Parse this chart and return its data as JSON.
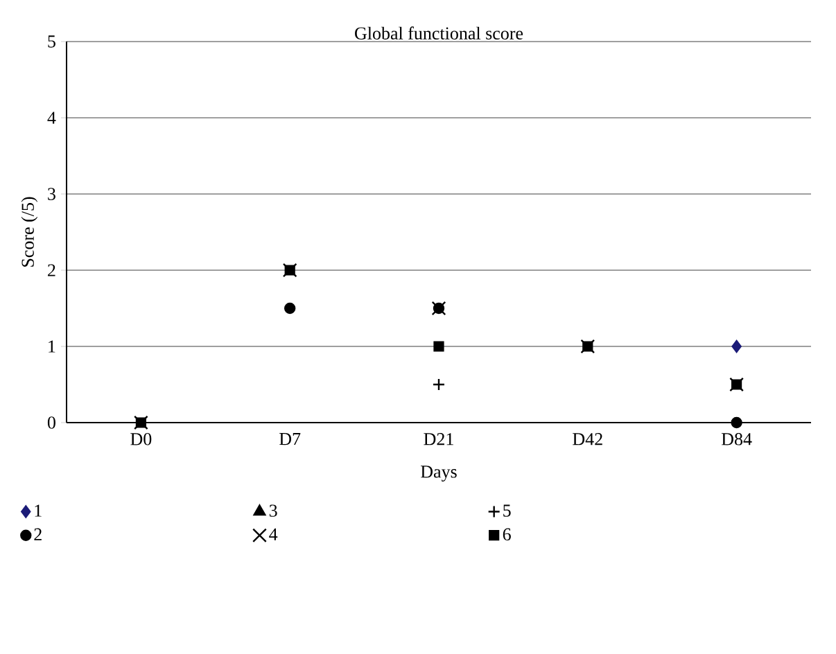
{
  "chart_data": {
    "type": "scatter",
    "title": "Global functional score",
    "xlabel": "Days",
    "ylabel": "Score (/5)",
    "categories": [
      "D0",
      "D7",
      "D21",
      "D42",
      "D84"
    ],
    "ylim": [
      0,
      5
    ],
    "yticks": [
      0,
      1,
      2,
      3,
      4,
      5
    ],
    "grid": "y",
    "legend": "bottom",
    "series": [
      {
        "name": "1",
        "color": "#1c1c78",
        "marker": "diamond",
        "values": [
          null,
          null,
          null,
          null,
          1
        ]
      },
      {
        "name": "2",
        "color": "#000000",
        "marker": "circle",
        "values": [
          null,
          1.5,
          1.5,
          null,
          0
        ]
      },
      {
        "name": "3",
        "color": "#000000",
        "marker": "triangle",
        "values": [
          null,
          null,
          null,
          null,
          null
        ]
      },
      {
        "name": "4",
        "color": "#000000",
        "marker": "cross",
        "values": [
          0,
          2,
          1.5,
          1,
          0.5
        ]
      },
      {
        "name": "5",
        "color": "#000000",
        "marker": "plus",
        "values": [
          null,
          null,
          0.5,
          null,
          null
        ]
      },
      {
        "name": "6",
        "color": "#000000",
        "marker": "square",
        "values": [
          0,
          2,
          1,
          1,
          0.5
        ]
      }
    ]
  }
}
